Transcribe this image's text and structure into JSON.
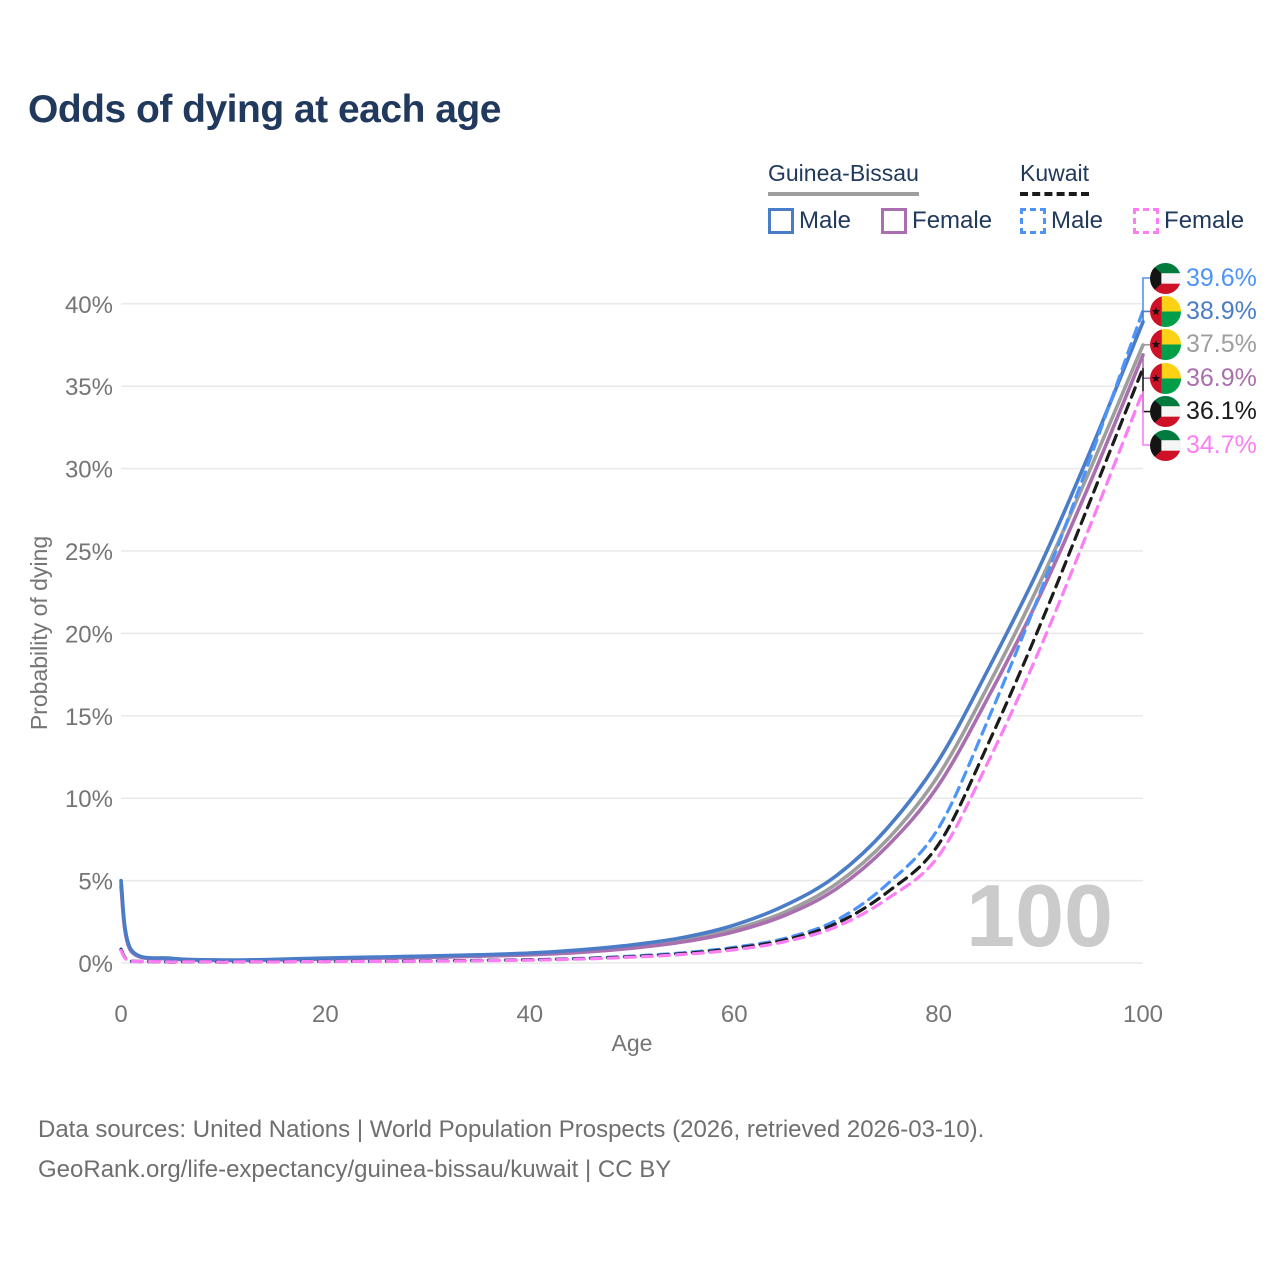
{
  "title": "Odds of dying at each age",
  "colors": {
    "title_text": "#20395c",
    "legend_text": "#20395c",
    "axis_text": "#757575",
    "grid": "#e9e9e9",
    "watermark": "#cbcbcb",
    "footer_text": "#6f6f6f",
    "gb_male": "#4a7cc7",
    "gb_female": "#aa6fae",
    "gb_total": "#9e9e9e",
    "kw_male": "#4d94f9",
    "kw_female": "#fb7ef5",
    "kw_total": "#1b1b1b"
  },
  "legend": {
    "groups": [
      {
        "country": "Guinea-Bissau",
        "underline_style": "solid",
        "underline_color": "#9e9e9e",
        "items": [
          {
            "label": "Male",
            "color": "#4a7cc7",
            "dashed": false
          },
          {
            "label": "Female",
            "color": "#aa6fae",
            "dashed": false
          }
        ]
      },
      {
        "country": "Kuwait",
        "underline_style": "dashed",
        "underline_color": "#1b1b1b",
        "items": [
          {
            "label": "Male",
            "color": "#4d94f9",
            "dashed": true
          },
          {
            "label": "Female",
            "color": "#fb7ef5",
            "dashed": true
          }
        ]
      }
    ]
  },
  "chart_data": {
    "type": "line",
    "title": "Odds of dying at each age",
    "xlabel": "Age",
    "ylabel": "Probability of dying",
    "xlim": [
      0,
      100
    ],
    "ylim_percent": [
      0,
      42
    ],
    "grid": true,
    "watermark": "100",
    "x_tick_values": [
      0,
      20,
      40,
      60,
      80,
      100
    ],
    "x_tick_labels": [
      "0",
      "20",
      "40",
      "60",
      "80",
      "100"
    ],
    "y_tick_values": [
      0,
      5,
      10,
      15,
      20,
      25,
      30,
      35,
      40
    ],
    "y_tick_labels": [
      "0%",
      "5%",
      "10%",
      "15%",
      "20%",
      "25%",
      "30%",
      "35%",
      "40%"
    ],
    "ages": [
      0,
      1,
      5,
      10,
      15,
      20,
      25,
      30,
      35,
      40,
      45,
      50,
      55,
      60,
      65,
      70,
      75,
      80,
      85,
      90,
      95,
      100
    ],
    "series": [
      {
        "name": "Guinea-Bissau Male",
        "country": "Guinea-Bissau",
        "sex": "Male",
        "color": "#4a7cc7",
        "dashed": false,
        "label_slot": 1,
        "end_value": "38.9%",
        "values": [
          5.0,
          0.8,
          0.28,
          0.18,
          0.22,
          0.3,
          0.36,
          0.42,
          0.5,
          0.6,
          0.8,
          1.1,
          1.55,
          2.3,
          3.5,
          5.3,
          8.2,
          12.3,
          18.0,
          24.2,
          31.3,
          38.9
        ]
      },
      {
        "name": "Guinea-Bissau Female",
        "country": "Guinea-Bissau",
        "sex": "Female",
        "color": "#aa6fae",
        "dashed": false,
        "label_slot": 3,
        "end_value": "36.9%",
        "values": [
          4.6,
          0.7,
          0.24,
          0.16,
          0.18,
          0.24,
          0.29,
          0.34,
          0.41,
          0.5,
          0.65,
          0.9,
          1.28,
          1.9,
          2.9,
          4.5,
          7.1,
          10.8,
          16.3,
          22.4,
          29.4,
          36.9
        ]
      },
      {
        "name": "Guinea-Bissau Total",
        "country": "Guinea-Bissau",
        "sex": "Total",
        "color": "#9e9e9e",
        "dashed": false,
        "label_slot": 2,
        "end_value": "37.5%",
        "values": [
          4.8,
          0.75,
          0.26,
          0.17,
          0.2,
          0.27,
          0.32,
          0.38,
          0.45,
          0.55,
          0.72,
          1.0,
          1.4,
          2.05,
          3.1,
          4.8,
          7.5,
          11.4,
          17.0,
          23.2,
          30.2,
          37.5
        ]
      },
      {
        "name": "Kuwait Male",
        "country": "Kuwait",
        "sex": "Male",
        "color": "#4d94f9",
        "dashed": true,
        "label_slot": 0,
        "end_value": "39.6%",
        "values": [
          0.85,
          0.1,
          0.06,
          0.05,
          0.08,
          0.1,
          0.11,
          0.13,
          0.16,
          0.2,
          0.28,
          0.42,
          0.62,
          0.95,
          1.5,
          2.6,
          4.8,
          8.2,
          15.0,
          22.6,
          30.9,
          39.6
        ]
      },
      {
        "name": "Kuwait Total",
        "country": "Kuwait",
        "sex": "Total",
        "color": "#1b1b1b",
        "dashed": true,
        "label_slot": 4,
        "end_value": "36.1%",
        "values": [
          0.8,
          0.1,
          0.05,
          0.05,
          0.07,
          0.09,
          0.1,
          0.12,
          0.15,
          0.19,
          0.26,
          0.38,
          0.57,
          0.88,
          1.4,
          2.4,
          4.3,
          7.2,
          13.5,
          20.6,
          28.3,
          36.1
        ]
      },
      {
        "name": "Kuwait Female",
        "country": "Kuwait",
        "sex": "Female",
        "color": "#fb7ef5",
        "dashed": true,
        "label_slot": 5,
        "end_value": "34.7%",
        "values": [
          0.75,
          0.09,
          0.05,
          0.04,
          0.06,
          0.08,
          0.1,
          0.11,
          0.14,
          0.17,
          0.24,
          0.35,
          0.52,
          0.8,
          1.3,
          2.2,
          3.9,
          6.5,
          12.4,
          19.2,
          26.8,
          34.7
        ]
      }
    ]
  },
  "end_labels": [
    {
      "flag": "kuwait",
      "value": "39.6%",
      "series": "Kuwait Male",
      "color": "#4d94f9"
    },
    {
      "flag": "guinea-bissau",
      "value": "38.9%",
      "series": "Guinea-Bissau Male",
      "color": "#4a7cc7"
    },
    {
      "flag": "guinea-bissau",
      "value": "37.5%",
      "series": "Guinea-Bissau Total",
      "color": "#9e9e9e"
    },
    {
      "flag": "guinea-bissau",
      "value": "36.9%",
      "series": "Guinea-Bissau Female",
      "color": "#aa6fae"
    },
    {
      "flag": "kuwait",
      "value": "36.1%",
      "series": "Kuwait Total",
      "color": "#1b1b1b"
    },
    {
      "flag": "kuwait",
      "value": "34.7%",
      "series": "Kuwait Female",
      "color": "#fb7ef5"
    }
  ],
  "flags": {
    "kuwait": {
      "green": "#007a3d",
      "white": "#f5f5f5",
      "red": "#ce1126",
      "black": "#141414"
    },
    "guinea_bissau": {
      "red": "#ce1126",
      "yellow": "#fcd116",
      "green": "#009e49",
      "star": "#111111"
    }
  },
  "footer": {
    "line1": "Data sources: United Nations | World Population Prospects (2026, retrieved 2026-03-10).",
    "line2": "GeoRank.org/life-expectancy/guinea-bissau/kuwait | CC BY"
  }
}
